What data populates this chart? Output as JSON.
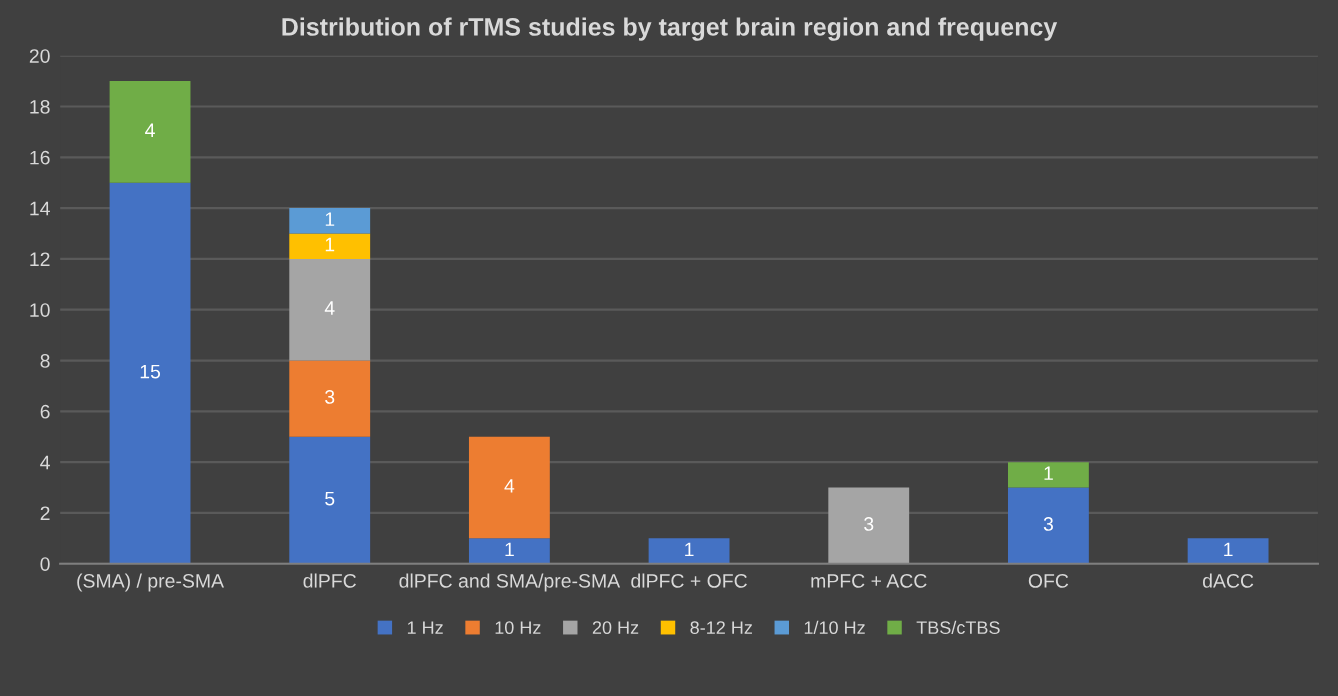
{
  "chart_data": {
    "type": "bar",
    "stacked": true,
    "title": "Distribution of rTMS studies by target brain region and frequency",
    "categories": [
      "(SMA) / pre-SMA",
      "dlPFC",
      "dlPFC and SMA/pre-SMA",
      "dlPFC + OFC",
      "mPFC + ACC",
      "OFC",
      "dACC"
    ],
    "series": [
      {
        "name": "1 Hz",
        "color": "#4472c4",
        "values": [
          15,
          5,
          1,
          1,
          null,
          3,
          1
        ]
      },
      {
        "name": "10 Hz",
        "color": "#ed7d31",
        "values": [
          null,
          3,
          4,
          null,
          null,
          null,
          null
        ]
      },
      {
        "name": "20 Hz",
        "color": "#a5a5a5",
        "values": [
          null,
          4,
          null,
          null,
          3,
          null,
          null
        ]
      },
      {
        "name": "8-12 Hz",
        "color": "#ffc000",
        "values": [
          null,
          1,
          null,
          null,
          null,
          null,
          null
        ]
      },
      {
        "name": "1/10 Hz",
        "color": "#5b9bd5",
        "values": [
          null,
          1,
          null,
          null,
          null,
          null,
          null
        ]
      },
      {
        "name": "TBS/cTBS",
        "color": "#70ad47",
        "values": [
          4,
          null,
          null,
          null,
          null,
          1,
          null
        ]
      }
    ],
    "ylim": [
      0,
      20
    ],
    "yticks": [
      0,
      2,
      4,
      6,
      8,
      10,
      12,
      14,
      16,
      18,
      20
    ],
    "grid": "y",
    "legend": "bottom",
    "data_labels": true
  }
}
